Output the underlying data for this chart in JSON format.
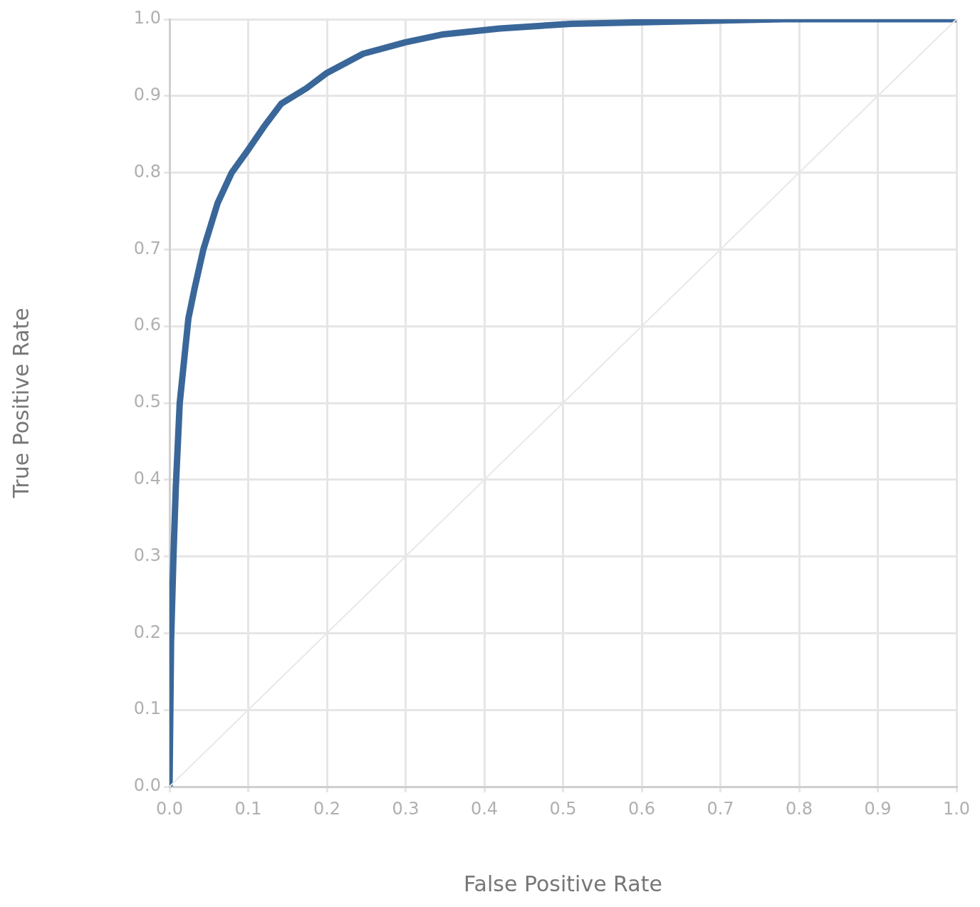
{
  "chart_data": {
    "type": "line",
    "xlabel": "False Positive Rate",
    "ylabel": "True Positive Rate",
    "series": [
      {
        "color": "#3a6799",
        "x": [
          0,
          0.002,
          0.005,
          0.008,
          0.013,
          0.017,
          0.024,
          0.032,
          0.043,
          0.061,
          0.079,
          0.1,
          0.12,
          0.142,
          0.174,
          0.2,
          0.246,
          0.3,
          0.346,
          0.42,
          0.51,
          0.644,
          0.78,
          1
        ],
        "values": [
          0,
          0.19,
          0.3,
          0.39,
          0.5,
          0.54,
          0.61,
          0.65,
          0.7,
          0.76,
          0.8,
          0.83,
          0.86,
          0.89,
          0.91,
          0.93,
          0.955,
          0.97,
          0.98,
          0.988,
          0.994,
          0.997,
          1,
          1
        ]
      },
      {
        "color": "#e8e8e8",
        "x": [
          0,
          1
        ],
        "values": [
          0,
          1
        ]
      }
    ],
    "xlim": [
      0,
      1
    ],
    "ylim": [
      0,
      1
    ],
    "xticks": [
      {
        "value": 0,
        "label": "0.0"
      },
      {
        "value": 0.1,
        "label": "0.1"
      },
      {
        "value": 0.2,
        "label": "0.2"
      },
      {
        "value": 0.3,
        "label": "0.3"
      },
      {
        "value": 0.4,
        "label": "0.4"
      },
      {
        "value": 0.5,
        "label": "0.5"
      },
      {
        "value": 0.6,
        "label": "0.6"
      },
      {
        "value": 0.7,
        "label": "0.7"
      },
      {
        "value": 0.8,
        "label": "0.8"
      },
      {
        "value": 0.9,
        "label": "0.9"
      },
      {
        "value": 1,
        "label": "1.0"
      }
    ],
    "yticks": [
      {
        "value": 0,
        "label": "0.0"
      },
      {
        "value": 0.1,
        "label": "0.1"
      },
      {
        "value": 0.2,
        "label": "0.2"
      },
      {
        "value": 0.3,
        "label": "0.3"
      },
      {
        "value": 0.4,
        "label": "0.4"
      },
      {
        "value": 0.5,
        "label": "0.5"
      },
      {
        "value": 0.6,
        "label": "0.6"
      },
      {
        "value": 0.7,
        "label": "0.7"
      },
      {
        "value": 0.8,
        "label": "0.8"
      },
      {
        "value": 0.9,
        "label": "0.9"
      },
      {
        "value": 1,
        "label": "1.0"
      }
    ],
    "grid": true,
    "legend": false,
    "marker": "none",
    "line_style": "solid"
  }
}
